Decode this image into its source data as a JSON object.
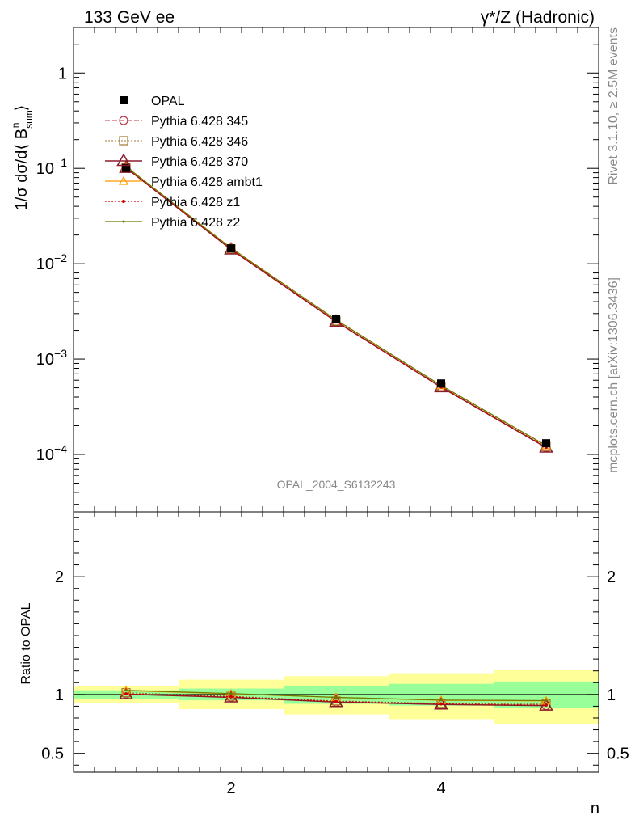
{
  "header": {
    "left_title": "133 GeV ee",
    "right_title": "γ*/Z (Hadronic)"
  },
  "side": {
    "rivet": "Rivet 3.1.10, ≥ 2.5M events",
    "mcplots": "mcplots.cern.ch [arXiv:1306.3436]"
  },
  "watermark": "OPAL_2004_S6132243",
  "colors": {
    "opal": "#000000",
    "p345": "#c0394a",
    "p346": "#a0782e",
    "p370": "#8b1a2b",
    "ambt1": "#ff9900",
    "z1": "#cc0000",
    "z2": "#6b7a00",
    "band_inner": "#99ff99",
    "band_outer": "#ffff99"
  },
  "chart_data": [
    {
      "type": "line",
      "ylabel_parts": {
        "pre": "1/σ dσ/d⟨ B",
        "sup": "n",
        "sub": "sum",
        "post": "⟩"
      },
      "yscale": "log",
      "xlim": [
        0.5,
        5.5
      ],
      "ylim": [
        2.5e-05,
        3
      ],
      "y_ticks": [
        {
          "value": 1,
          "label": "1"
        },
        {
          "value": 0.1,
          "base": "10",
          "exp": "−1"
        },
        {
          "value": 0.01,
          "base": "10",
          "exp": "−2"
        },
        {
          "value": 0.001,
          "base": "10",
          "exp": "−3"
        },
        {
          "value": 0.0001,
          "base": "10",
          "exp": "−4"
        }
      ],
      "legend_position": "top-left",
      "data": {
        "name": "OPAL",
        "x": [
          1,
          2,
          3,
          4,
          5
        ],
        "y": [
          0.101,
          0.0145,
          0.00265,
          0.000555,
          0.000131
        ]
      },
      "series": [
        {
          "name": "Pythia 6.428 345",
          "key": "p345",
          "x": [
            1,
            2,
            3,
            4,
            5
          ],
          "y": [
            0.1015,
            0.0141,
            0.00247,
            0.000508,
            0.000118
          ]
        },
        {
          "name": "Pythia 6.428 346",
          "key": "p346",
          "x": [
            1,
            2,
            3,
            4,
            5
          ],
          "y": [
            0.1025,
            0.0143,
            0.00251,
            0.000515,
            0.000121
          ]
        },
        {
          "name": "Pythia 6.428 370",
          "key": "p370",
          "x": [
            1,
            2,
            3,
            4,
            5
          ],
          "y": [
            0.1012,
            0.0141,
            0.00247,
            0.000507,
            0.000118
          ]
        },
        {
          "name": "Pythia 6.428 ambt1",
          "key": "ambt1",
          "x": [
            1,
            2,
            3,
            4,
            5
          ],
          "y": [
            0.1042,
            0.0146,
            0.00258,
            0.000528,
            0.000124
          ]
        },
        {
          "name": "Pythia 6.428 z1",
          "key": "z1",
          "x": [
            1,
            2,
            3,
            4,
            5
          ],
          "y": [
            0.1015,
            0.0142,
            0.00248,
            0.00051,
            0.000119
          ]
        },
        {
          "name": "Pythia 6.428 z2",
          "key": "z2",
          "x": [
            1,
            2,
            3,
            4,
            5
          ],
          "y": [
            0.1044,
            0.0146,
            0.00258,
            0.000529,
            0.000124
          ]
        }
      ]
    },
    {
      "type": "line",
      "ylabel": "Ratio to OPAL",
      "xlabel": "n",
      "xlim": [
        0.5,
        5.5
      ],
      "ylim": [
        0.34,
        2.55
      ],
      "y_ticks": [
        {
          "value": 0.5,
          "label": "0.5"
        },
        {
          "value": 1,
          "label": "1"
        },
        {
          "value": 2,
          "label": "2"
        }
      ],
      "x_ticks": [
        {
          "value": 2,
          "label": "2"
        },
        {
          "value": 4,
          "label": "4"
        }
      ],
      "bands": [
        {
          "x_low": 0.5,
          "x_high": 1.5,
          "inner": [
            0.965,
            1.035
          ],
          "outer": [
            0.93,
            1.07
          ]
        },
        {
          "x_low": 1.5,
          "x_high": 2.5,
          "inner": [
            0.95,
            1.05
          ],
          "outer": [
            0.875,
            1.125
          ]
        },
        {
          "x_low": 2.5,
          "x_high": 3.5,
          "inner": [
            0.92,
            1.075
          ],
          "outer": [
            0.83,
            1.155
          ]
        },
        {
          "x_low": 3.5,
          "x_high": 4.5,
          "inner": [
            0.905,
            1.09
          ],
          "outer": [
            0.79,
            1.18
          ]
        },
        {
          "x_low": 4.5,
          "x_high": 5.5,
          "inner": [
            0.885,
            1.11
          ],
          "outer": [
            0.745,
            1.21
          ]
        }
      ],
      "series": [
        {
          "name": "Pythia 6.428 345",
          "key": "p345",
          "x": [
            1,
            2,
            3,
            4,
            5
          ],
          "y": [
            1.005,
            0.975,
            0.935,
            0.915,
            0.905
          ]
        },
        {
          "name": "Pythia 6.428 346",
          "key": "p346",
          "x": [
            1,
            2,
            3,
            4,
            5
          ],
          "y": [
            1.015,
            0.985,
            0.945,
            0.925,
            0.92
          ]
        },
        {
          "name": "Pythia 6.428 370",
          "key": "p370",
          "x": [
            1,
            2,
            3,
            4,
            5
          ],
          "y": [
            1.002,
            0.975,
            0.935,
            0.915,
            0.905
          ]
        },
        {
          "name": "Pythia 6.428 ambt1",
          "key": "ambt1",
          "x": [
            1,
            2,
            3,
            4,
            5
          ],
          "y": [
            1.032,
            1.005,
            0.975,
            0.95,
            0.945
          ]
        },
        {
          "name": "Pythia 6.428 z1",
          "key": "z1",
          "x": [
            1,
            2,
            3,
            4,
            5
          ],
          "y": [
            1.005,
            0.98,
            0.94,
            0.92,
            0.91
          ]
        },
        {
          "name": "Pythia 6.428 z2",
          "key": "z2",
          "x": [
            1,
            2,
            3,
            4,
            5
          ],
          "y": [
            1.035,
            1.008,
            0.975,
            0.952,
            0.948
          ]
        }
      ]
    }
  ]
}
